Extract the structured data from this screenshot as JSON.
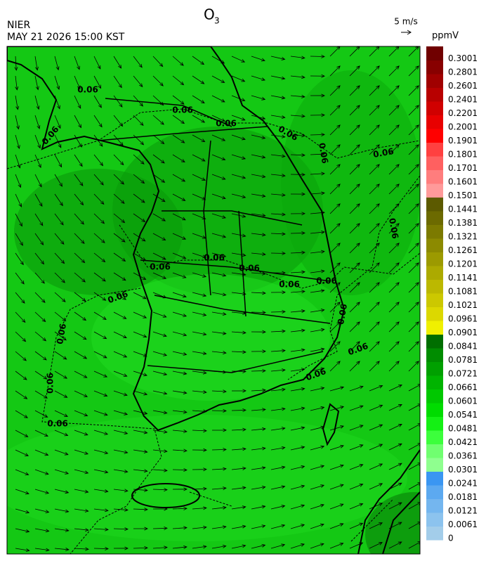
{
  "header": {
    "title": "O",
    "title_subscript": "3",
    "agency": "NIER",
    "timestamp": "MAY 21 2026 15:00 KST",
    "wind_scale": "5 m/s",
    "unit": "ppmV"
  },
  "colorbar": {
    "labels": [
      0,
      0.0061,
      0.0121,
      0.0181,
      0.0241,
      0.0301,
      0.0361,
      0.0421,
      0.0481,
      0.0541,
      0.0601,
      0.0661,
      0.0721,
      0.0781,
      0.0841,
      0.0901,
      0.0961,
      0.1021,
      0.1081,
      0.1141,
      0.1201,
      0.1261,
      0.1321,
      0.1381,
      0.1441,
      0.1501,
      0.1601,
      0.1701,
      0.1801,
      0.1901,
      0.2001,
      0.2201,
      0.2401,
      0.2601,
      0.2801,
      0.3001
    ],
    "colors": [
      "#a3cdea",
      "#8cc3ee",
      "#74b6ef",
      "#5ca9f0",
      "#3a96f2",
      "#8fff8f",
      "#70ff70",
      "#3cff3c",
      "#14f014",
      "#00dc00",
      "#00c800",
      "#00b400",
      "#00a000",
      "#008c00",
      "#006e00",
      "#f0f000",
      "#dcd800",
      "#ccc800",
      "#bcb800",
      "#acaa00",
      "#9c9a00",
      "#8c8a00",
      "#7c7a00",
      "#6c6a00",
      "#5c5a00",
      "#ff9a9a",
      "#ff7d7d",
      "#ff6060",
      "#ff4040",
      "#ff0000",
      "#e80000",
      "#d00000",
      "#b80000",
      "#a00000",
      "#880000",
      "#700000"
    ]
  },
  "contour_labels": [
    0.06,
    0.06,
    0.06,
    0.06,
    0.06,
    0.06,
    0.06,
    0.06,
    0.06,
    0.06,
    0.06,
    0.06,
    0.06,
    0.06,
    0.06,
    0.06,
    0.06,
    0.06,
    0.06,
    0.06
  ]
}
